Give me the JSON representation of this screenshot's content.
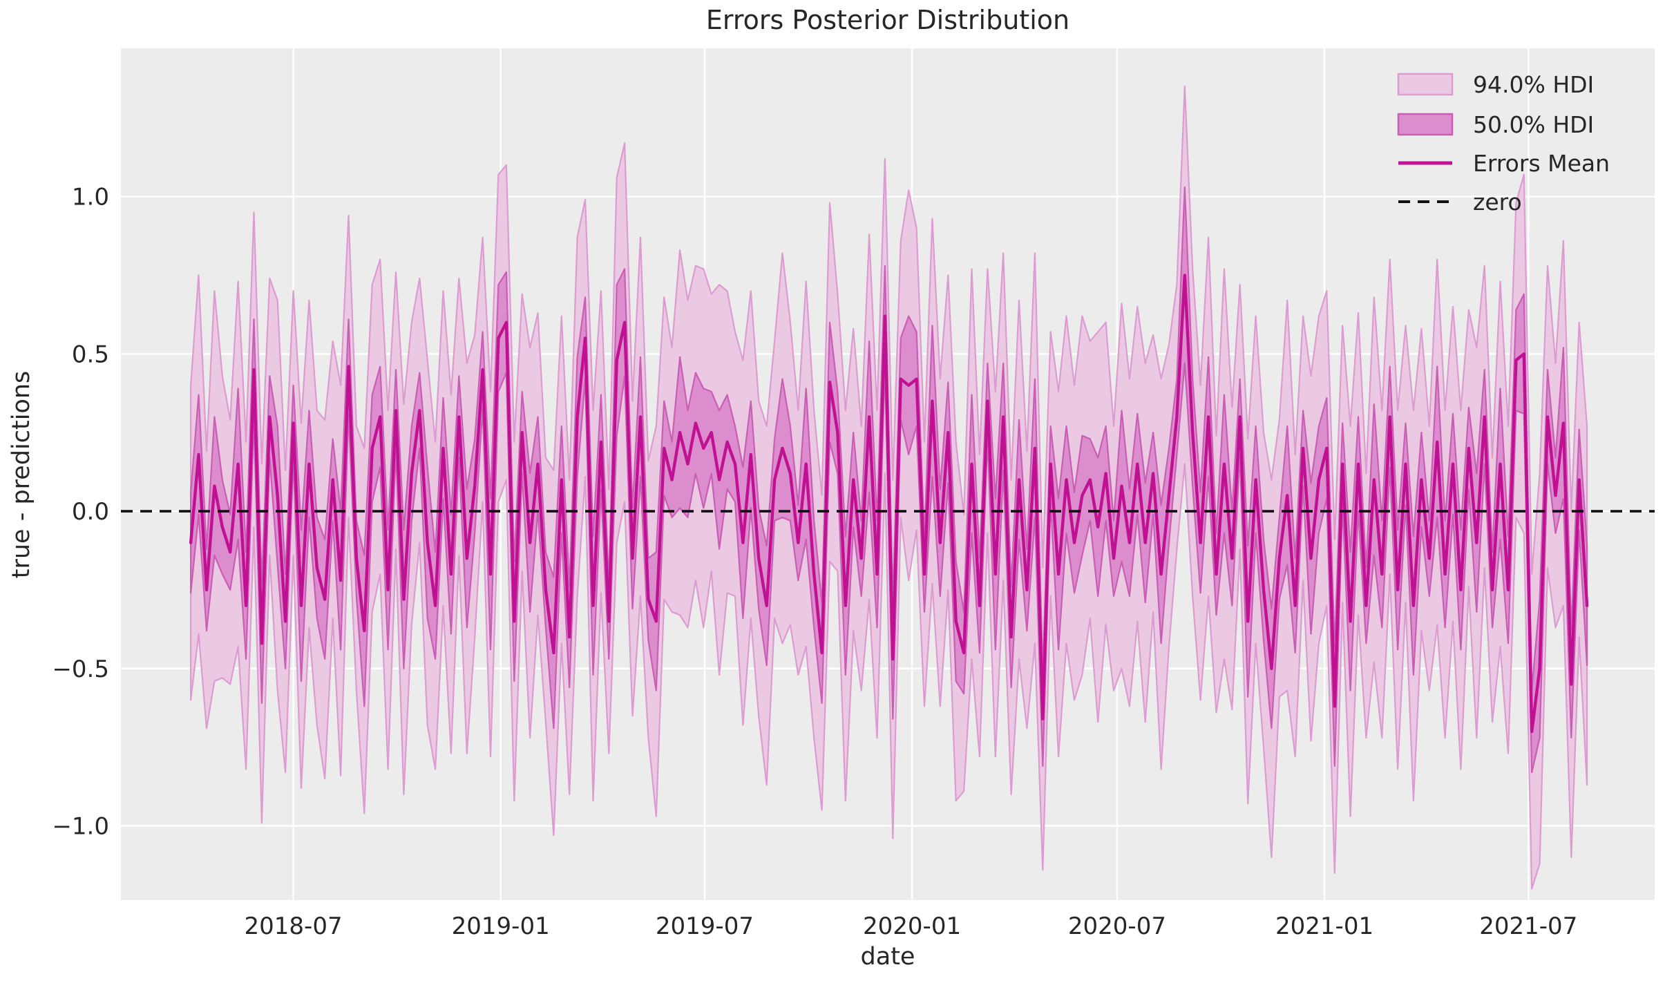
{
  "figure": {
    "title": "Errors Posterior Distribution",
    "xlabel": "date",
    "ylabel": "true - predictions"
  },
  "legend": {
    "entries": [
      {
        "label": "94.0% HDI",
        "swatch": "band94-patch"
      },
      {
        "label": "50.0% HDI",
        "swatch": "band50-patch"
      },
      {
        "label": "Errors Mean",
        "swatch": "mean-line"
      },
      {
        "label": "zero",
        "swatch": "zero-dash"
      }
    ]
  },
  "colors": {
    "figure_bg": "#ffffff",
    "plot_bg": "#ececec",
    "grid": "#ffffff",
    "band94_fill": "#ecc9e3",
    "band94_edge": "#dc9cd1",
    "band50_fill": "#db8dce",
    "band50_edge": "#c95fb4",
    "mean_line": "#c01192",
    "zero_line": "#111111",
    "text": "#262626"
  },
  "chart_data": {
    "type": "line",
    "title": "Errors Posterior Distribution",
    "xlabel": "date",
    "ylabel": "true - predictions",
    "grid": true,
    "legend_position": "upper right",
    "x_start": "2018-04-01",
    "x_step_days": 7,
    "n_points": 178,
    "x_end": "2021-08-22",
    "xlim": [
      "2018-01-29",
      "2021-10-21"
    ],
    "ylim": [
      -1.236,
      1.471
    ],
    "x_ticks": [
      {
        "date": "2018-07-01",
        "label": "2018-07"
      },
      {
        "date": "2019-01-01",
        "label": "2019-01"
      },
      {
        "date": "2019-07-01",
        "label": "2019-07"
      },
      {
        "date": "2020-01-01",
        "label": "2020-01"
      },
      {
        "date": "2020-07-01",
        "label": "2020-07"
      },
      {
        "date": "2021-01-01",
        "label": "2021-01"
      },
      {
        "date": "2021-07-01",
        "label": "2021-07"
      }
    ],
    "y_ticks": [
      {
        "value": 1.0,
        "label": "1.0"
      },
      {
        "value": 0.5,
        "label": "0.5"
      },
      {
        "value": 0.0,
        "label": "0.0"
      },
      {
        "value": -0.5,
        "label": "−0.5"
      },
      {
        "value": -1.0,
        "label": "−1.0"
      }
    ],
    "zero_line": 0.0,
    "series_notes": "mean = Errors Mean line; hdi bands are mean +/- half width per point, weekly from x_start",
    "mean": [
      -0.1,
      0.18,
      -0.25,
      0.08,
      -0.05,
      -0.13,
      0.15,
      -0.3,
      0.45,
      -0.42,
      0.3,
      0.05,
      -0.35,
      0.28,
      -0.3,
      0.15,
      -0.18,
      -0.28,
      0.1,
      -0.22,
      0.46,
      -0.15,
      -0.38,
      0.2,
      0.3,
      -0.25,
      0.32,
      -0.28,
      0.12,
      0.32,
      -0.1,
      -0.3,
      0.2,
      -0.2,
      0.3,
      -0.15,
      0.08,
      0.45,
      -0.2,
      0.55,
      0.6,
      -0.35,
      0.25,
      -0.1,
      0.15,
      -0.25,
      -0.45,
      0.1,
      -0.4,
      0.3,
      0.55,
      -0.3,
      0.22,
      -0.35,
      0.48,
      0.6,
      -0.15,
      0.3,
      -0.28,
      -0.35,
      0.2,
      0.1,
      0.25,
      0.15,
      0.28,
      0.2,
      0.25,
      0.1,
      0.22,
      0.15,
      -0.1,
      0.18,
      -0.15,
      -0.3,
      0.1,
      0.2,
      0.12,
      -0.1,
      0.15,
      -0.2,
      -0.45,
      0.41,
      0.25,
      -0.3,
      0.1,
      -0.15,
      0.3,
      -0.2,
      0.62,
      -0.47,
      0.42,
      0.4,
      0.42,
      -0.2,
      0.35,
      -0.1,
      0.25,
      -0.35,
      -0.45,
      0.15,
      -0.3,
      0.35,
      -0.2,
      0.3,
      -0.4,
      0.1,
      -0.25,
      0.2,
      -0.66,
      0.15,
      -0.2,
      0.1,
      -0.1,
      0.05,
      0.1,
      -0.05,
      0.12,
      -0.15,
      0.08,
      -0.1,
      0.15,
      -0.1,
      0.12,
      -0.2,
      0.05,
      0.3,
      0.75,
      0.25,
      -0.1,
      0.3,
      -0.2,
      0.15,
      -0.15,
      0.3,
      -0.35,
      0.1,
      -0.25,
      -0.5,
      -0.15,
      0.05,
      -0.3,
      0.2,
      -0.15,
      0.1,
      0.2,
      -0.62,
      0.15,
      -0.35,
      0.15,
      -0.3,
      0.1,
      -0.2,
      0.3,
      -0.25,
      0.15,
      -0.3,
      0.1,
      -0.15,
      0.22,
      -0.2,
      0.15,
      -0.25,
      0.2,
      -0.1,
      0.3,
      -0.25,
      0.15,
      -0.25,
      0.48,
      0.5,
      -0.7,
      -0.5,
      0.3,
      0.05,
      0.28,
      -0.55,
      0.1,
      -0.3
    ],
    "hdi50_half_width": [
      0.16,
      0.19,
      0.13,
      0.22,
      0.15,
      0.12,
      0.24,
      0.17,
      0.16,
      0.19,
      0.13,
      0.22,
      0.15,
      0.12,
      0.24,
      0.17,
      0.16,
      0.19,
      0.13,
      0.22,
      0.15,
      0.12,
      0.24,
      0.17,
      0.16,
      0.19,
      0.13,
      0.22,
      0.15,
      0.12,
      0.24,
      0.17,
      0.16,
      0.19,
      0.13,
      0.22,
      0.15,
      0.12,
      0.24,
      0.17,
      0.16,
      0.19,
      0.13,
      0.22,
      0.15,
      0.12,
      0.24,
      0.17,
      0.16,
      0.19,
      0.13,
      0.22,
      0.15,
      0.12,
      0.24,
      0.17,
      0.16,
      0.19,
      0.13,
      0.22,
      0.15,
      0.12,
      0.24,
      0.17,
      0.16,
      0.19,
      0.13,
      0.22,
      0.15,
      0.12,
      0.24,
      0.17,
      0.16,
      0.19,
      0.13,
      0.22,
      0.15,
      0.12,
      0.24,
      0.17,
      0.16,
      0.19,
      0.13,
      0.22,
      0.15,
      0.12,
      0.24,
      0.17,
      0.16,
      0.19,
      0.13,
      0.22,
      0.15,
      0.12,
      0.24,
      0.17,
      0.16,
      0.19,
      0.13,
      0.22,
      0.15,
      0.12,
      0.24,
      0.17,
      0.16,
      0.19,
      0.13,
      0.22,
      0.15,
      0.12,
      0.24,
      0.17,
      0.16,
      0.19,
      0.13,
      0.22,
      0.15,
      0.12,
      0.24,
      0.17,
      0.16,
      0.19,
      0.13,
      0.22,
      0.15,
      0.12,
      0.28,
      0.17,
      0.16,
      0.19,
      0.13,
      0.22,
      0.15,
      0.12,
      0.24,
      0.17,
      0.16,
      0.19,
      0.13,
      0.22,
      0.15,
      0.12,
      0.24,
      0.17,
      0.16,
      0.19,
      0.13,
      0.22,
      0.15,
      0.12,
      0.24,
      0.17,
      0.16,
      0.19,
      0.13,
      0.22,
      0.15,
      0.12,
      0.24,
      0.17,
      0.16,
      0.19,
      0.13,
      0.22,
      0.15,
      0.12,
      0.24,
      0.17,
      0.16,
      0.19,
      0.13,
      0.22,
      0.15,
      0.12,
      0.24,
      0.17,
      0.16,
      0.19
    ],
    "hdi94_half_width": [
      0.5,
      0.57,
      0.44,
      0.62,
      0.48,
      0.42,
      0.58,
      0.52,
      0.5,
      0.57,
      0.44,
      0.62,
      0.48,
      0.42,
      0.58,
      0.52,
      0.5,
      0.57,
      0.44,
      0.62,
      0.48,
      0.42,
      0.58,
      0.52,
      0.5,
      0.57,
      0.44,
      0.62,
      0.48,
      0.42,
      0.58,
      0.52,
      0.5,
      0.57,
      0.44,
      0.62,
      0.48,
      0.42,
      0.58,
      0.52,
      0.5,
      0.57,
      0.44,
      0.62,
      0.48,
      0.42,
      0.58,
      0.52,
      0.5,
      0.57,
      0.44,
      0.62,
      0.48,
      0.42,
      0.58,
      0.57,
      0.5,
      0.57,
      0.44,
      0.62,
      0.48,
      0.42,
      0.58,
      0.52,
      0.5,
      0.57,
      0.44,
      0.62,
      0.48,
      0.42,
      0.58,
      0.52,
      0.5,
      0.57,
      0.44,
      0.62,
      0.48,
      0.42,
      0.58,
      0.52,
      0.5,
      0.57,
      0.44,
      0.62,
      0.48,
      0.42,
      0.58,
      0.52,
      0.5,
      0.57,
      0.44,
      0.62,
      0.48,
      0.42,
      0.58,
      0.52,
      0.5,
      0.57,
      0.44,
      0.62,
      0.48,
      0.42,
      0.58,
      0.52,
      0.5,
      0.57,
      0.44,
      0.62,
      0.48,
      0.42,
      0.58,
      0.52,
      0.5,
      0.57,
      0.44,
      0.62,
      0.48,
      0.42,
      0.58,
      0.52,
      0.5,
      0.57,
      0.44,
      0.62,
      0.48,
      0.42,
      0.6,
      0.52,
      0.5,
      0.57,
      0.44,
      0.62,
      0.48,
      0.42,
      0.58,
      0.52,
      0.5,
      0.6,
      0.44,
      0.62,
      0.48,
      0.42,
      0.58,
      0.52,
      0.5,
      0.53,
      0.44,
      0.62,
      0.48,
      0.42,
      0.58,
      0.52,
      0.5,
      0.57,
      0.44,
      0.62,
      0.48,
      0.42,
      0.58,
      0.52,
      0.5,
      0.57,
      0.44,
      0.62,
      0.48,
      0.42,
      0.58,
      0.52,
      0.5,
      0.57,
      0.5,
      0.62,
      0.48,
      0.42,
      0.58,
      0.55,
      0.5,
      0.57
    ]
  }
}
